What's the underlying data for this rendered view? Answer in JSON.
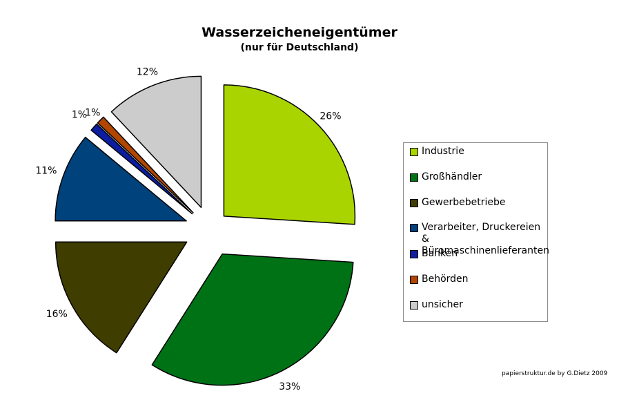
{
  "credit": "papierstruktur.de by G.Dietz 2009",
  "chart_data": {
    "type": "pie",
    "title": "Wasserzeicheneigentümer",
    "subtitle": "(nur für Deutschland)",
    "legend_position": "right",
    "exploded": true,
    "start_angle": "12 o'clock, clockwise",
    "slices": [
      {
        "name": "Industrie",
        "value": 26,
        "label": "26%",
        "color": "#aad400"
      },
      {
        "name": "Großhändler",
        "value": 33,
        "label": "33%",
        "color": "#007216"
      },
      {
        "name": "Gewerbebetriebe",
        "value": 16,
        "label": "16%",
        "color": "#3f3d00"
      },
      {
        "name": "Verarbeiter, Druckereien & Büromaschinenlieferanten",
        "value": 11,
        "label": "11%",
        "color": "#00427c"
      },
      {
        "name": "Banken",
        "value": 1,
        "label": "1%",
        "color": "#0c1da0"
      },
      {
        "name": "Behörden",
        "value": 1,
        "label": "1%",
        "color": "#b24600"
      },
      {
        "name": "unsicher",
        "value": 12,
        "label": "12%",
        "color": "#cccccc"
      }
    ]
  }
}
